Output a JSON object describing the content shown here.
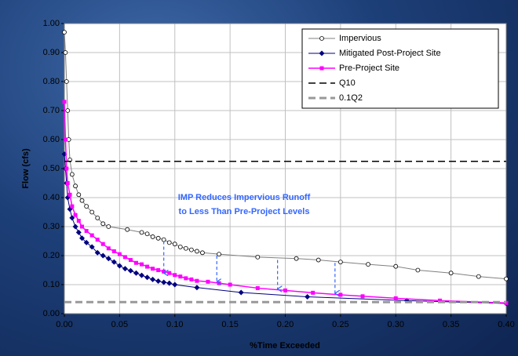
{
  "chart_data": {
    "type": "line",
    "x_label": "%Time Exceeded",
    "y_label": "Flow (cfs)",
    "xlim": [
      0,
      0.4
    ],
    "ylim": [
      0,
      1
    ],
    "xticks": [
      {
        "value": 0,
        "label": "0.00"
      },
      {
        "value": 0.05,
        "label": "0.05"
      },
      {
        "value": 0.1,
        "label": "0.10"
      },
      {
        "value": 0.15,
        "label": "0.15"
      },
      {
        "value": 0.2,
        "label": "0.20"
      },
      {
        "value": 0.25,
        "label": "0.25"
      },
      {
        "value": 0.3,
        "label": "0.30"
      },
      {
        "value": 0.35,
        "label": "0.35"
      },
      {
        "value": 0.4,
        "label": "0.40"
      }
    ],
    "yticks": [
      {
        "value": 0,
        "label": "0.00"
      },
      {
        "value": 0.1,
        "label": "0.10"
      },
      {
        "value": 0.2,
        "label": "0.20"
      },
      {
        "value": 0.3,
        "label": "0.30"
      },
      {
        "value": 0.4,
        "label": "0.40"
      },
      {
        "value": 0.5,
        "label": "0.50"
      },
      {
        "value": 0.6,
        "label": "0.60"
      },
      {
        "value": 0.7,
        "label": "0.70"
      },
      {
        "value": 0.8,
        "label": "0.80"
      },
      {
        "value": 0.9,
        "label": "0.90"
      },
      {
        "value": 1,
        "label": "1.00"
      }
    ],
    "grid": true,
    "legend": "upper right",
    "series": [
      {
        "name": "Impervious",
        "color": "#808080",
        "marker": "circle",
        "dashed": false,
        "line_width": 1,
        "x": [
          0,
          0.001,
          0.002,
          0.003,
          0.004,
          0.005,
          0.007,
          0.01,
          0.013,
          0.016,
          0.02,
          0.025,
          0.03,
          0.035,
          0.04,
          0.057,
          0.07,
          0.075,
          0.08,
          0.085,
          0.09,
          0.095,
          0.1,
          0.105,
          0.11,
          0.115,
          0.12,
          0.125,
          0.14,
          0.175,
          0.21,
          0.23,
          0.25,
          0.275,
          0.3,
          0.32,
          0.35,
          0.375,
          0.4
        ],
        "values": [
          0.97,
          0.9,
          0.8,
          0.7,
          0.6,
          0.53,
          0.48,
          0.44,
          0.41,
          0.39,
          0.37,
          0.35,
          0.33,
          0.31,
          0.3,
          0.29,
          0.28,
          0.275,
          0.265,
          0.26,
          0.255,
          0.245,
          0.24,
          0.23,
          0.225,
          0.22,
          0.215,
          0.21,
          0.205,
          0.195,
          0.19,
          0.185,
          0.178,
          0.17,
          0.163,
          0.15,
          0.14,
          0.128,
          0.12
        ]
      },
      {
        "name": "Mitigated Post-Project Site",
        "color": "#000080",
        "marker": "diamond",
        "dashed": false,
        "line_width": 1,
        "x": [
          0,
          0.001,
          0.002,
          0.003,
          0.005,
          0.007,
          0.01,
          0.013,
          0.016,
          0.02,
          0.025,
          0.03,
          0.035,
          0.04,
          0.045,
          0.05,
          0.055,
          0.06,
          0.065,
          0.07,
          0.075,
          0.08,
          0.085,
          0.09,
          0.095,
          0.1,
          0.12,
          0.16,
          0.22,
          0.31,
          0.4
        ],
        "values": [
          0.55,
          0.5,
          0.45,
          0.4,
          0.36,
          0.33,
          0.3,
          0.28,
          0.26,
          0.245,
          0.23,
          0.21,
          0.2,
          0.19,
          0.178,
          0.165,
          0.155,
          0.148,
          0.14,
          0.132,
          0.125,
          0.118,
          0.112,
          0.108,
          0.105,
          0.1,
          0.09,
          0.073,
          0.058,
          0.045,
          0.035
        ]
      },
      {
        "name": "Pre-Project Site",
        "color": "#ff00ff",
        "marker": "square",
        "dashed": false,
        "line_width": 1.5,
        "x": [
          0,
          0.001,
          0.002,
          0.003,
          0.005,
          0.007,
          0.01,
          0.013,
          0.016,
          0.02,
          0.025,
          0.03,
          0.035,
          0.04,
          0.045,
          0.05,
          0.055,
          0.06,
          0.065,
          0.07,
          0.075,
          0.08,
          0.085,
          0.09,
          0.095,
          0.1,
          0.105,
          0.11,
          0.115,
          0.12,
          0.13,
          0.14,
          0.15,
          0.175,
          0.2,
          0.225,
          0.25,
          0.27,
          0.3,
          0.34,
          0.4
        ],
        "values": [
          0.73,
          0.6,
          0.5,
          0.45,
          0.41,
          0.37,
          0.34,
          0.32,
          0.3,
          0.285,
          0.27,
          0.255,
          0.24,
          0.225,
          0.215,
          0.205,
          0.195,
          0.185,
          0.175,
          0.17,
          0.162,
          0.155,
          0.15,
          0.145,
          0.14,
          0.133,
          0.128,
          0.122,
          0.118,
          0.113,
          0.11,
          0.105,
          0.1,
          0.088,
          0.08,
          0.072,
          0.065,
          0.06,
          0.053,
          0.045,
          0.037
        ]
      },
      {
        "name": "Q10",
        "color": "#000000",
        "marker": "none",
        "dashed": true,
        "line_width": 1.5,
        "x": [
          0,
          0.4
        ],
        "values": [
          0.525,
          0.525
        ]
      },
      {
        "name": "0.1Q2",
        "color": "#999999",
        "marker": "none",
        "dashed": true,
        "line_width": 3,
        "x": [
          0,
          0.4
        ],
        "values": [
          0.04,
          0.04
        ]
      }
    ],
    "annotation": {
      "lines": [
        "IMP Reduces Impervious Runoff",
        "to Less Than Pre-Project Levels"
      ],
      "color": "#3366ff"
    },
    "arrows": [
      {
        "x": 0.09,
        "from": 0.25,
        "to": 0.14
      },
      {
        "x": 0.138,
        "from": 0.2,
        "to": 0.11
      },
      {
        "x": 0.193,
        "from": 0.185,
        "to": 0.085
      },
      {
        "x": 0.245,
        "from": 0.175,
        "to": 0.07
      }
    ]
  }
}
